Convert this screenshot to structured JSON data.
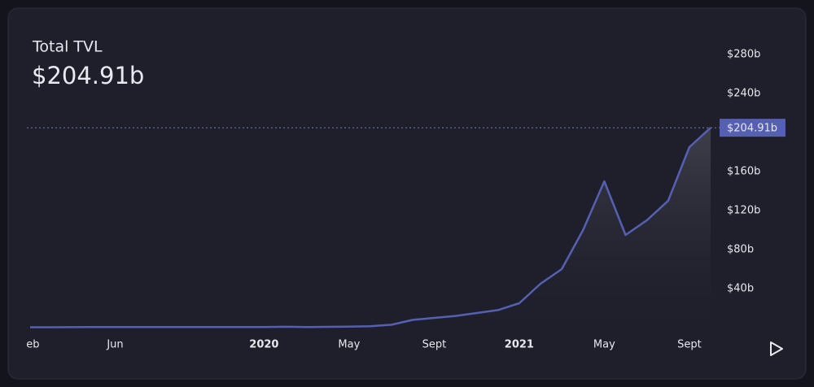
{
  "chart_data": {
    "type": "area",
    "title": "Total TVL",
    "headline": "$204.91b",
    "x": [
      "2019-02",
      "2019-03",
      "2019-04",
      "2019-05",
      "2019-06",
      "2019-07",
      "2019-08",
      "2019-09",
      "2019-10",
      "2019-11",
      "2019-12",
      "2020-01",
      "2020-02",
      "2020-03",
      "2020-04",
      "2020-05",
      "2020-06",
      "2020-07",
      "2020-08",
      "2020-09",
      "2020-10",
      "2020-11",
      "2020-12",
      "2021-01",
      "2021-02",
      "2021-03",
      "2021-04",
      "2021-05",
      "2021-06",
      "2021-07",
      "2021-08",
      "2021-09",
      "2021-10"
    ],
    "series": [
      {
        "name": "Total TVL",
        "color": "#5660b3",
        "values": [
          0.4,
          0.4,
          0.5,
          0.6,
          0.6,
          0.6,
          0.6,
          0.6,
          0.6,
          0.6,
          0.6,
          0.7,
          0.9,
          0.6,
          0.8,
          1,
          1.5,
          3,
          8,
          10,
          12,
          15,
          18,
          25,
          45,
          60,
          100,
          150,
          95,
          110,
          130,
          185,
          204.91
        ]
      }
    ],
    "xlim": [
      "2019-02",
      "2021-10"
    ],
    "xticks": [
      {
        "value": "2019-02",
        "label": "Feb"
      },
      {
        "value": "2019-06",
        "label": "Jun"
      },
      {
        "value": "2020-01",
        "label": "2020"
      },
      {
        "value": "2020-05",
        "label": "May"
      },
      {
        "value": "2020-09",
        "label": "Sept"
      },
      {
        "value": "2021-01",
        "label": "2021"
      },
      {
        "value": "2021-05",
        "label": "May"
      },
      {
        "value": "2021-09",
        "label": "Sept"
      }
    ],
    "ylim": [
      0,
      300
    ],
    "yticks": [
      {
        "value": 40,
        "label": "$40b"
      },
      {
        "value": 80,
        "label": "$80b"
      },
      {
        "value": 120,
        "label": "$120b"
      },
      {
        "value": 160,
        "label": "$160b"
      },
      {
        "value": 240,
        "label": "$240b"
      },
      {
        "value": 280,
        "label": "$280b"
      }
    ]
  }
}
